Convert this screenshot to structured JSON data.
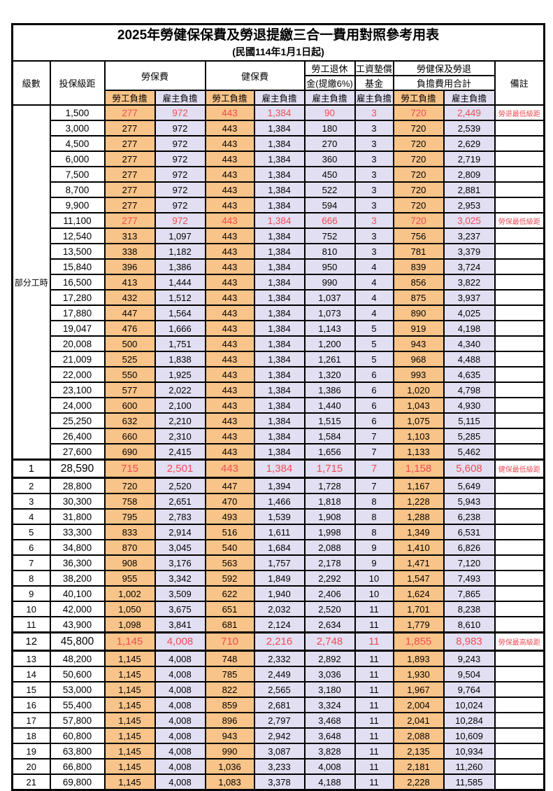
{
  "title": "2025年勞健保保費及勞退提繳三合一費用對照參考用表",
  "subtitle": "(民國114年1月1日起)",
  "header": {
    "level": "級數",
    "bracket": "投保級距",
    "labor_insurance": "勞保費",
    "health_insurance": "健保費",
    "pension_line1": "勞工退休",
    "pension_line2": "金(提繳6%)",
    "wage_fund_line1": "工資墊償",
    "wage_fund_line2": "基金",
    "total_line1": "勞健保及勞退",
    "total_line2": "負擔費用合計",
    "remark": "備註",
    "employee_share": "勞工負擔",
    "employer_share": "雇主負擔"
  },
  "colors": {
    "employee_bg": "#f9c489",
    "employer_bg": "#e2dff2",
    "highlight_text": "#ee4d55",
    "border": "#000000"
  },
  "table": {
    "part_time_label": "部分工時",
    "part_time_rowspan": 23,
    "rows": [
      {
        "level": "",
        "bracket": "1,500",
        "values": [
          "277",
          "972",
          "443",
          "1,384",
          "90",
          "3",
          "720",
          "2,449"
        ],
        "remark": "勞退最低級距",
        "style": "red"
      },
      {
        "level": "",
        "bracket": "3,000",
        "values": [
          "277",
          "972",
          "443",
          "1,384",
          "180",
          "3",
          "720",
          "2,539"
        ],
        "remark": "",
        "style": ""
      },
      {
        "level": "",
        "bracket": "4,500",
        "values": [
          "277",
          "972",
          "443",
          "1,384",
          "270",
          "3",
          "720",
          "2,629"
        ],
        "remark": "",
        "style": ""
      },
      {
        "level": "",
        "bracket": "6,000",
        "values": [
          "277",
          "972",
          "443",
          "1,384",
          "360",
          "3",
          "720",
          "2,719"
        ],
        "remark": "",
        "style": ""
      },
      {
        "level": "",
        "bracket": "7,500",
        "values": [
          "277",
          "972",
          "443",
          "1,384",
          "450",
          "3",
          "720",
          "2,809"
        ],
        "remark": "",
        "style": ""
      },
      {
        "level": "",
        "bracket": "8,700",
        "values": [
          "277",
          "972",
          "443",
          "1,384",
          "522",
          "3",
          "720",
          "2,881"
        ],
        "remark": "",
        "style": ""
      },
      {
        "level": "",
        "bracket": "9,900",
        "values": [
          "277",
          "972",
          "443",
          "1,384",
          "594",
          "3",
          "720",
          "2,953"
        ],
        "remark": "",
        "style": ""
      },
      {
        "level": "",
        "bracket": "11,100",
        "values": [
          "277",
          "972",
          "443",
          "1,384",
          "666",
          "3",
          "720",
          "3,025"
        ],
        "remark": "勞保最低級距",
        "style": "red"
      },
      {
        "level": "",
        "bracket": "12,540",
        "values": [
          "313",
          "1,097",
          "443",
          "1,384",
          "752",
          "3",
          "756",
          "3,237"
        ],
        "remark": "",
        "style": ""
      },
      {
        "level": "",
        "bracket": "13,500",
        "values": [
          "338",
          "1,182",
          "443",
          "1,384",
          "810",
          "3",
          "781",
          "3,379"
        ],
        "remark": "",
        "style": ""
      },
      {
        "level": "",
        "bracket": "15,840",
        "values": [
          "396",
          "1,386",
          "443",
          "1,384",
          "950",
          "4",
          "839",
          "3,724"
        ],
        "remark": "",
        "style": ""
      },
      {
        "level": "",
        "bracket": "16,500",
        "values": [
          "413",
          "1,444",
          "443",
          "1,384",
          "990",
          "4",
          "856",
          "3,822"
        ],
        "remark": "",
        "style": ""
      },
      {
        "level": "",
        "bracket": "17,280",
        "values": [
          "432",
          "1,512",
          "443",
          "1,384",
          "1,037",
          "4",
          "875",
          "3,937"
        ],
        "remark": "",
        "style": ""
      },
      {
        "level": "",
        "bracket": "17,880",
        "values": [
          "447",
          "1,564",
          "443",
          "1,384",
          "1,073",
          "4",
          "890",
          "4,025"
        ],
        "remark": "",
        "style": ""
      },
      {
        "level": "",
        "bracket": "19,047",
        "values": [
          "476",
          "1,666",
          "443",
          "1,384",
          "1,143",
          "5",
          "919",
          "4,198"
        ],
        "remark": "",
        "style": ""
      },
      {
        "level": "",
        "bracket": "20,008",
        "values": [
          "500",
          "1,751",
          "443",
          "1,384",
          "1,200",
          "5",
          "943",
          "4,340"
        ],
        "remark": "",
        "style": ""
      },
      {
        "level": "",
        "bracket": "21,009",
        "values": [
          "525",
          "1,838",
          "443",
          "1,384",
          "1,261",
          "5",
          "968",
          "4,488"
        ],
        "remark": "",
        "style": ""
      },
      {
        "level": "",
        "bracket": "22,000",
        "values": [
          "550",
          "1,925",
          "443",
          "1,384",
          "1,320",
          "6",
          "993",
          "4,635"
        ],
        "remark": "",
        "style": ""
      },
      {
        "level": "",
        "bracket": "23,100",
        "values": [
          "577",
          "2,022",
          "443",
          "1,384",
          "1,386",
          "6",
          "1,020",
          "4,798"
        ],
        "remark": "",
        "style": ""
      },
      {
        "level": "",
        "bracket": "24,000",
        "values": [
          "600",
          "2,100",
          "443",
          "1,384",
          "1,440",
          "6",
          "1,043",
          "4,930"
        ],
        "remark": "",
        "style": ""
      },
      {
        "level": "",
        "bracket": "25,250",
        "values": [
          "632",
          "2,210",
          "443",
          "1,384",
          "1,515",
          "6",
          "1,075",
          "5,115"
        ],
        "remark": "",
        "style": ""
      },
      {
        "level": "",
        "bracket": "26,400",
        "values": [
          "660",
          "2,310",
          "443",
          "1,384",
          "1,584",
          "7",
          "1,103",
          "5,285"
        ],
        "remark": "",
        "style": ""
      },
      {
        "level": "",
        "bracket": "27,600",
        "values": [
          "690",
          "2,415",
          "443",
          "1,384",
          "1,656",
          "7",
          "1,133",
          "5,462"
        ],
        "remark": "",
        "style": ""
      },
      {
        "level": "1",
        "bracket": "28,590",
        "values": [
          "715",
          "2,501",
          "443",
          "1,384",
          "1,715",
          "7",
          "1,158",
          "5,608"
        ],
        "remark": "健保最低級距",
        "style": "red-big"
      },
      {
        "level": "2",
        "bracket": "28,800",
        "values": [
          "720",
          "2,520",
          "447",
          "1,394",
          "1,728",
          "7",
          "1,167",
          "5,649"
        ],
        "remark": "",
        "style": ""
      },
      {
        "level": "3",
        "bracket": "30,300",
        "values": [
          "758",
          "2,651",
          "470",
          "1,466",
          "1,818",
          "8",
          "1,228",
          "5,943"
        ],
        "remark": "",
        "style": ""
      },
      {
        "level": "4",
        "bracket": "31,800",
        "values": [
          "795",
          "2,783",
          "493",
          "1,539",
          "1,908",
          "8",
          "1,288",
          "6,238"
        ],
        "remark": "",
        "style": ""
      },
      {
        "level": "5",
        "bracket": "33,300",
        "values": [
          "833",
          "2,914",
          "516",
          "1,611",
          "1,998",
          "8",
          "1,349",
          "6,531"
        ],
        "remark": "",
        "style": ""
      },
      {
        "level": "6",
        "bracket": "34,800",
        "values": [
          "870",
          "3,045",
          "540",
          "1,684",
          "2,088",
          "9",
          "1,410",
          "6,826"
        ],
        "remark": "",
        "style": ""
      },
      {
        "level": "7",
        "bracket": "36,300",
        "values": [
          "908",
          "3,176",
          "563",
          "1,757",
          "2,178",
          "9",
          "1,471",
          "7,120"
        ],
        "remark": "",
        "style": ""
      },
      {
        "level": "8",
        "bracket": "38,200",
        "values": [
          "955",
          "3,342",
          "592",
          "1,849",
          "2,292",
          "10",
          "1,547",
          "7,493"
        ],
        "remark": "",
        "style": ""
      },
      {
        "level": "9",
        "bracket": "40,100",
        "values": [
          "1,002",
          "3,509",
          "622",
          "1,940",
          "2,406",
          "10",
          "1,624",
          "7,865"
        ],
        "remark": "",
        "style": ""
      },
      {
        "level": "10",
        "bracket": "42,000",
        "values": [
          "1,050",
          "3,675",
          "651",
          "2,032",
          "2,520",
          "11",
          "1,701",
          "8,238"
        ],
        "remark": "",
        "style": ""
      },
      {
        "level": "11",
        "bracket": "43,900",
        "values": [
          "1,098",
          "3,841",
          "681",
          "2,124",
          "2,634",
          "11",
          "1,779",
          "8,610"
        ],
        "remark": "",
        "style": ""
      },
      {
        "level": "12",
        "bracket": "45,800",
        "values": [
          "1,145",
          "4,008",
          "710",
          "2,216",
          "2,748",
          "11",
          "1,855",
          "8,983"
        ],
        "remark": "勞保最高級距",
        "style": "red-big"
      },
      {
        "level": "13",
        "bracket": "48,200",
        "values": [
          "1,145",
          "4,008",
          "748",
          "2,332",
          "2,892",
          "11",
          "1,893",
          "9,243"
        ],
        "remark": "",
        "style": ""
      },
      {
        "level": "14",
        "bracket": "50,600",
        "values": [
          "1,145",
          "4,008",
          "785",
          "2,449",
          "3,036",
          "11",
          "1,930",
          "9,504"
        ],
        "remark": "",
        "style": ""
      },
      {
        "level": "15",
        "bracket": "53,000",
        "values": [
          "1,145",
          "4,008",
          "822",
          "2,565",
          "3,180",
          "11",
          "1,967",
          "9,764"
        ],
        "remark": "",
        "style": ""
      },
      {
        "level": "16",
        "bracket": "55,400",
        "values": [
          "1,145",
          "4,008",
          "859",
          "2,681",
          "3,324",
          "11",
          "2,004",
          "10,024"
        ],
        "remark": "",
        "style": ""
      },
      {
        "level": "17",
        "bracket": "57,800",
        "values": [
          "1,145",
          "4,008",
          "896",
          "2,797",
          "3,468",
          "11",
          "2,041",
          "10,284"
        ],
        "remark": "",
        "style": ""
      },
      {
        "level": "18",
        "bracket": "60,800",
        "values": [
          "1,145",
          "4,008",
          "943",
          "2,942",
          "3,648",
          "11",
          "2,088",
          "10,609"
        ],
        "remark": "",
        "style": ""
      },
      {
        "level": "19",
        "bracket": "63,800",
        "values": [
          "1,145",
          "4,008",
          "990",
          "3,087",
          "3,828",
          "11",
          "2,135",
          "10,934"
        ],
        "remark": "",
        "style": ""
      },
      {
        "level": "20",
        "bracket": "66,800",
        "values": [
          "1,145",
          "4,008",
          "1,036",
          "3,233",
          "4,008",
          "11",
          "2,181",
          "11,260"
        ],
        "remark": "",
        "style": ""
      },
      {
        "level": "21",
        "bracket": "69,800",
        "values": [
          "1,145",
          "4,008",
          "1,083",
          "3,378",
          "4,188",
          "11",
          "2,228",
          "11,585"
        ],
        "remark": "",
        "style": ""
      }
    ]
  }
}
